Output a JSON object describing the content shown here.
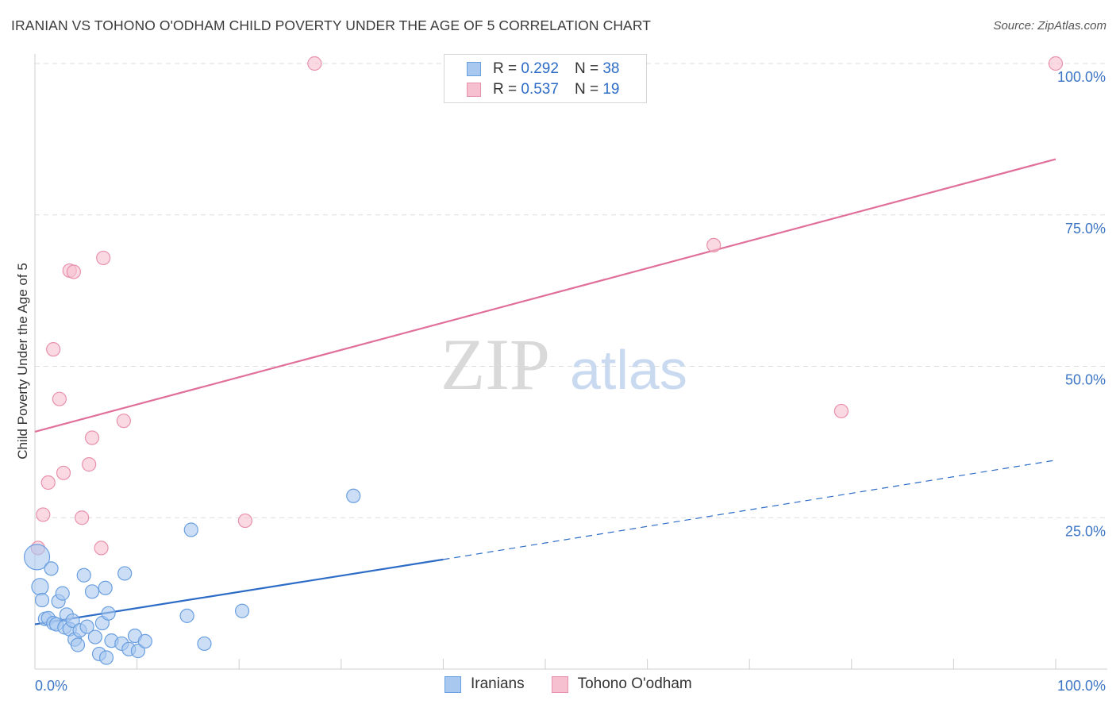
{
  "title": "IRANIAN VS TOHONO O'ODHAM CHILD POVERTY UNDER THE AGE OF 5 CORRELATION CHART",
  "source": "Source: ZipAtlas.com",
  "watermark": {
    "zip": "ZIP",
    "atlas": "atlas"
  },
  "legend": {
    "rows": [
      {
        "r_label": "R =",
        "r_value": "0.292",
        "n_label": "N =",
        "n_value": "38",
        "color": "#a9c8f0",
        "border": "#6a9fe0"
      },
      {
        "r_label": "R =",
        "r_value": "0.537",
        "n_label": "N =",
        "n_value": "19",
        "color": "#f7c0d0",
        "border": "#e891ad"
      }
    ]
  },
  "bottom_legend": [
    "Iranians",
    "Tohono O'odham"
  ],
  "colors": {
    "iranians_fill": "#a9c8f0",
    "iranians_stroke": "#6a9fe0",
    "iranians_line": "#2d6cc6",
    "tohono_fill": "#f7c0d0",
    "tohono_stroke": "#e891ad",
    "tohono_line": "#e0709a",
    "tick": "#3c75c4",
    "grid": "#dddddd"
  },
  "chart_data": {
    "type": "scatter",
    "title": "IRANIAN VS TOHONO O'ODHAM CHILD POVERTY UNDER THE AGE OF 5 CORRELATION CHART",
    "xlabel": "",
    "ylabel": "Child Poverty Under the Age of 5",
    "xlim": [
      0,
      100
    ],
    "ylim": [
      0,
      100
    ],
    "x_tick_labels": [
      "0.0%",
      "100.0%"
    ],
    "y_tick_labels": [
      "25.0%",
      "50.0%",
      "75.0%",
      "100.0%"
    ],
    "y_ticks": [
      25,
      50,
      75,
      100
    ],
    "grid": true,
    "series": [
      {
        "name": "Iranians",
        "R": 0.292,
        "N": 38,
        "points": [
          [
            0.2,
            18.5
          ],
          [
            0.5,
            13.6
          ],
          [
            0.7,
            11.4
          ],
          [
            1.0,
            8.3
          ],
          [
            1.3,
            8.4
          ],
          [
            1.6,
            16.6
          ],
          [
            1.8,
            7.6
          ],
          [
            2.1,
            7.4
          ],
          [
            2.3,
            11.2
          ],
          [
            2.7,
            12.5
          ],
          [
            2.9,
            6.9
          ],
          [
            3.1,
            9.0
          ],
          [
            3.4,
            6.6
          ],
          [
            3.7,
            8.0
          ],
          [
            3.9,
            4.9
          ],
          [
            4.2,
            4.0
          ],
          [
            4.4,
            6.4
          ],
          [
            4.8,
            15.5
          ],
          [
            5.1,
            7.0
          ],
          [
            5.6,
            12.8
          ],
          [
            5.9,
            5.3
          ],
          [
            6.3,
            2.5
          ],
          [
            6.6,
            7.6
          ],
          [
            6.9,
            13.4
          ],
          [
            7.0,
            1.9
          ],
          [
            7.2,
            9.2
          ],
          [
            7.5,
            4.7
          ],
          [
            8.5,
            4.2
          ],
          [
            8.8,
            15.8
          ],
          [
            9.2,
            3.3
          ],
          [
            9.8,
            5.5
          ],
          [
            10.1,
            3.0
          ],
          [
            10.8,
            4.6
          ],
          [
            14.9,
            8.8
          ],
          [
            15.3,
            23.0
          ],
          [
            16.6,
            4.2
          ],
          [
            20.3,
            9.6
          ],
          [
            31.2,
            28.6
          ]
        ],
        "trend": {
          "x0": 0,
          "y0": 7.4,
          "x1": 40,
          "y1": 18.1,
          "dashed_to_x": 100,
          "dashed_to_y": 34.5
        }
      },
      {
        "name": "Tohono O'odham",
        "R": 0.537,
        "N": 19,
        "points": [
          [
            0.3,
            20.0
          ],
          [
            0.8,
            25.5
          ],
          [
            1.3,
            30.8
          ],
          [
            1.8,
            52.8
          ],
          [
            2.4,
            44.6
          ],
          [
            2.8,
            32.4
          ],
          [
            3.4,
            65.8
          ],
          [
            3.8,
            65.6
          ],
          [
            4.6,
            25.0
          ],
          [
            5.6,
            38.2
          ],
          [
            5.3,
            33.8
          ],
          [
            6.5,
            20.0
          ],
          [
            6.7,
            67.9
          ],
          [
            8.7,
            41.0
          ],
          [
            20.6,
            24.5
          ],
          [
            27.4,
            100.0
          ],
          [
            66.5,
            70.0
          ],
          [
            79.0,
            42.6
          ],
          [
            100.0,
            100.0
          ]
        ],
        "trend": {
          "x0": 0,
          "y0": 39.2,
          "x1": 100,
          "y1": 84.2
        }
      }
    ]
  }
}
